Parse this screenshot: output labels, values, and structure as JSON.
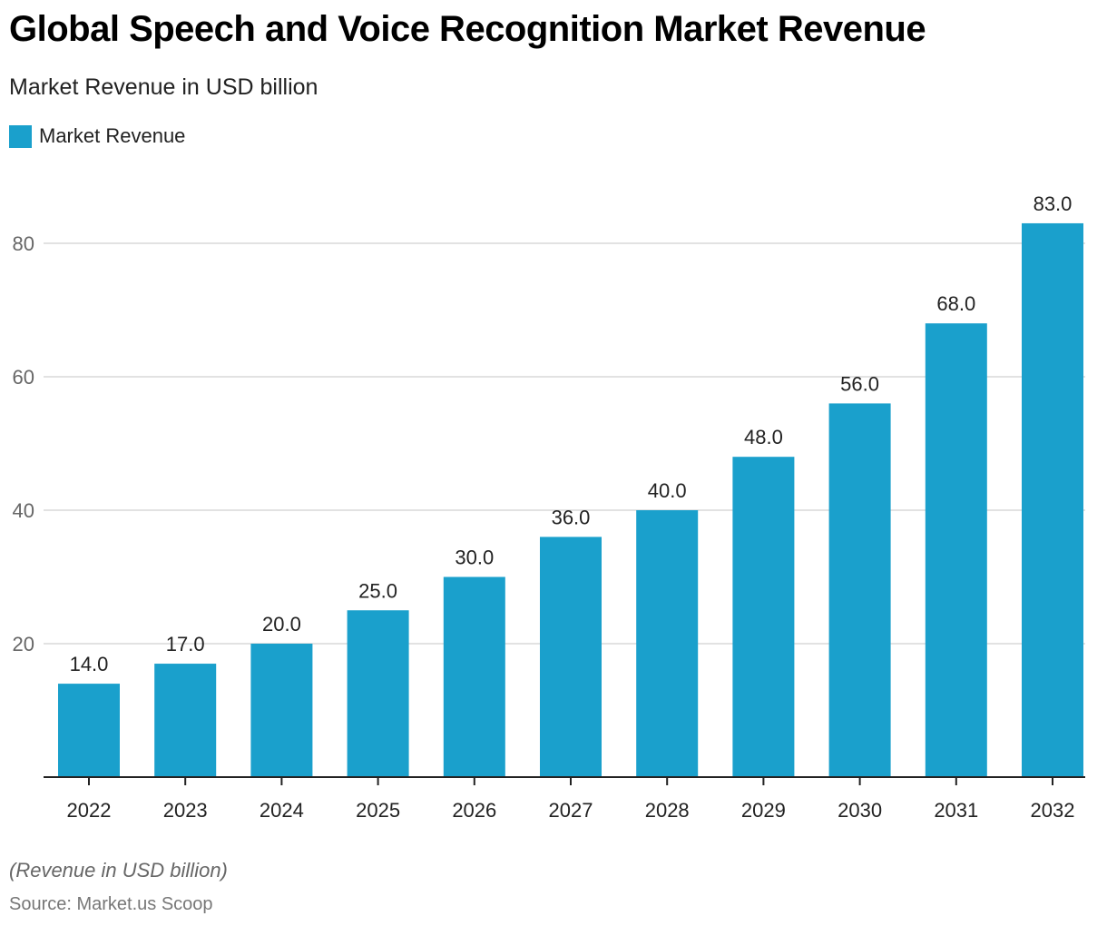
{
  "header": {
    "title": "Global Speech and Voice Recognition Market Revenue",
    "subtitle": "Market Revenue in USD billion"
  },
  "legend": {
    "label": "Market Revenue",
    "color": "#1aa0cc"
  },
  "footer": {
    "note": "(Revenue in USD billion)",
    "source": "Source: Market.us Scoop"
  },
  "chart_data": {
    "type": "bar",
    "title": "Global Speech and Voice Recognition Market Revenue",
    "subtitle": "Market Revenue in USD billion",
    "xlabel": "",
    "ylabel": "",
    "categories": [
      "2022",
      "2023",
      "2024",
      "2025",
      "2026",
      "2027",
      "2028",
      "2029",
      "2030",
      "2031",
      "2032"
    ],
    "series": [
      {
        "name": "Market Revenue",
        "color": "#1aa0cc",
        "values": [
          14.0,
          17.0,
          20.0,
          25.0,
          30.0,
          36.0,
          40.0,
          48.0,
          56.0,
          68.0,
          83.0
        ],
        "labels": [
          "14.0",
          "17.0",
          "20.0",
          "25.0",
          "30.0",
          "36.0",
          "40.0",
          "48.0",
          "56.0",
          "68.0",
          "83.0"
        ]
      }
    ],
    "ylim": [
      0,
      80
    ],
    "yticks": [
      20,
      40,
      60,
      80
    ],
    "ytick_labels": [
      "20",
      "40",
      "60",
      "80"
    ],
    "grid": true,
    "legend_position": "top-left",
    "note": "(Revenue in USD billion)",
    "source": "Source: Market.us Scoop"
  }
}
